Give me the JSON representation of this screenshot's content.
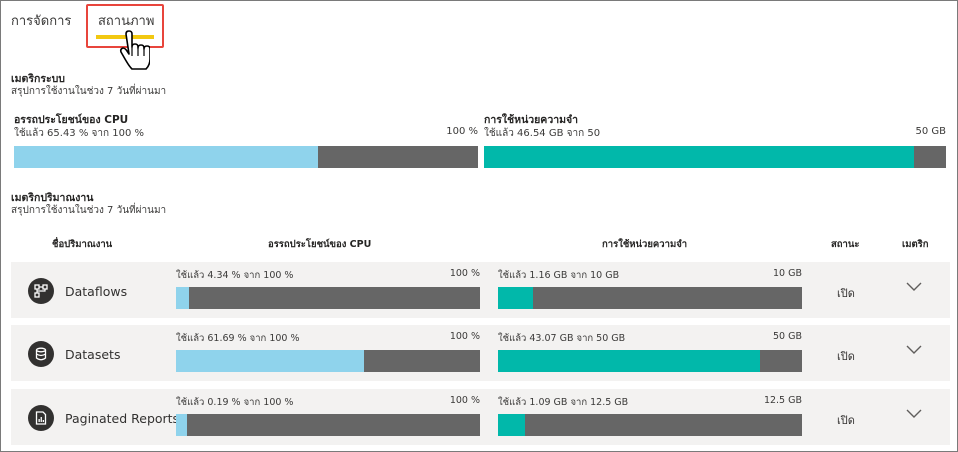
{
  "tabs": {
    "manage": "การจัดการ",
    "status": "สถานภาพ"
  },
  "system": {
    "title": "เมตริกระบบ",
    "subtitle": "สรุปการใช้งานในช่วง 7 วันที่ผ่านมา",
    "cpu": {
      "label": "อรรถประโยชน์ของ CPU",
      "used": "ใช้แล้ว 65.43 % จาก 100 %",
      "max": "100 %",
      "fraction": 0.6543
    },
    "memory": {
      "label": "การใช้หน่วยความจำ",
      "used": "ใช้แล้ว 46.54 GB จาก 50",
      "max": "50 GB",
      "fraction": 0.9308
    }
  },
  "workload": {
    "title": "เมตริกปริมาณงาน",
    "subtitle": "สรุปการใช้งานในช่วง 7 วันที่ผ่านมา",
    "columns": {
      "name": "ชื่อปริมาณงาน",
      "cpu": "อรรถประโยชน์ของ CPU",
      "memory": "การใช้หน่วยความจำ",
      "state": "สถานะ",
      "metrics": "เมตริก"
    },
    "rows": [
      {
        "name": "Dataflows",
        "icon": "dataflow-icon",
        "cpu_used": "ใช้แล้ว 4.34 % จาก 100 %",
        "cpu_max": "100 %",
        "cpu_fraction": 0.0434,
        "mem_used": "ใช้แล้ว 1.16 GB จาก 10 GB",
        "mem_max": "10 GB",
        "mem_fraction": 0.116,
        "state": "เปิด"
      },
      {
        "name": "Datasets",
        "icon": "database-icon",
        "cpu_used": "ใช้แล้ว 61.69 % จาก 100 %",
        "cpu_max": "100 %",
        "cpu_fraction": 0.6169,
        "mem_used": "ใช้แล้ว 43.07 GB จาก 50 GB",
        "mem_max": "50 GB",
        "mem_fraction": 0.8614,
        "state": "เปิด"
      },
      {
        "name": "Paginated Reports",
        "icon": "report-icon",
        "cpu_used": "ใช้แล้ว 0.19 % จาก 100 %",
        "cpu_max": "100 %",
        "cpu_fraction": 0.0019,
        "mem_used": "ใช้แล้ว 1.09 GB จาก 12.5 GB",
        "mem_max": "12.5 GB",
        "mem_fraction": 0.0872,
        "state": "เปิด"
      }
    ]
  },
  "colors": {
    "cpu_fill": "#8fd3ec",
    "memory_fill": "#01b8aa",
    "bar_track": "#666666",
    "tab_underline": "#f2c811",
    "highlight": "#e8453c"
  }
}
